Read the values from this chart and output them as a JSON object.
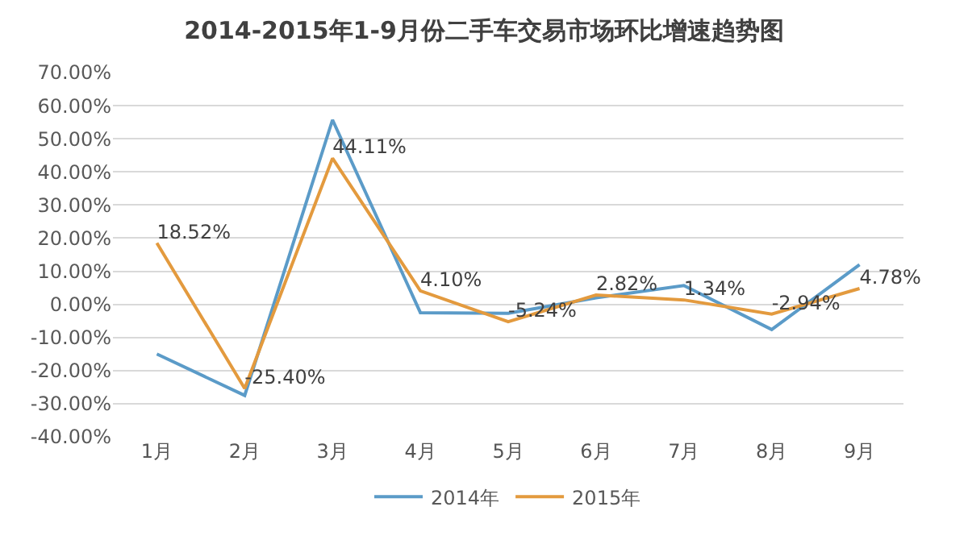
{
  "chart_data": {
    "type": "line",
    "title": "2014-2015年1-9月份二手车交易市场环比增速趋势图",
    "categories": [
      "1月",
      "2月",
      "3月",
      "4月",
      "5月",
      "6月",
      "7月",
      "8月",
      "9月"
    ],
    "series": [
      {
        "name": "2014年",
        "color": "#5b9bc8",
        "values": [
          -15,
          -27.5,
          55.7,
          -2.5,
          -2.7,
          2,
          5.7,
          -7.6,
          12
        ]
      },
      {
        "name": "2015年",
        "color": "#e39a3e",
        "values": [
          18.52,
          -25.4,
          44.11,
          4.1,
          -5.24,
          2.82,
          1.34,
          -2.94,
          4.78
        ],
        "value_labels": [
          "18.52%",
          "-25.40%",
          "44.11%",
          "4.10%",
          "-5.24%",
          "2.82%",
          "1.34%",
          "-2.94%",
          "4.78%"
        ]
      }
    ],
    "ylim": [
      -40,
      70
    ],
    "yticks": [
      {
        "value": -40,
        "label": "-40.00%"
      },
      {
        "value": -30,
        "label": "-30.00%"
      },
      {
        "value": -20,
        "label": "-20.00%"
      },
      {
        "value": -10,
        "label": "-10.00%"
      },
      {
        "value": 0,
        "label": "0.00%"
      },
      {
        "value": 10,
        "label": "10.00%"
      },
      {
        "value": 20,
        "label": "20.00%"
      },
      {
        "value": 30,
        "label": "30.00%"
      },
      {
        "value": 40,
        "label": "40.00%"
      },
      {
        "value": 50,
        "label": "50.00%"
      },
      {
        "value": 60,
        "label": "60.00%"
      },
      {
        "value": 70,
        "label": "70.00%"
      }
    ],
    "grid": "y",
    "legend": "bottom",
    "marker": "none",
    "line_style": "solid"
  }
}
